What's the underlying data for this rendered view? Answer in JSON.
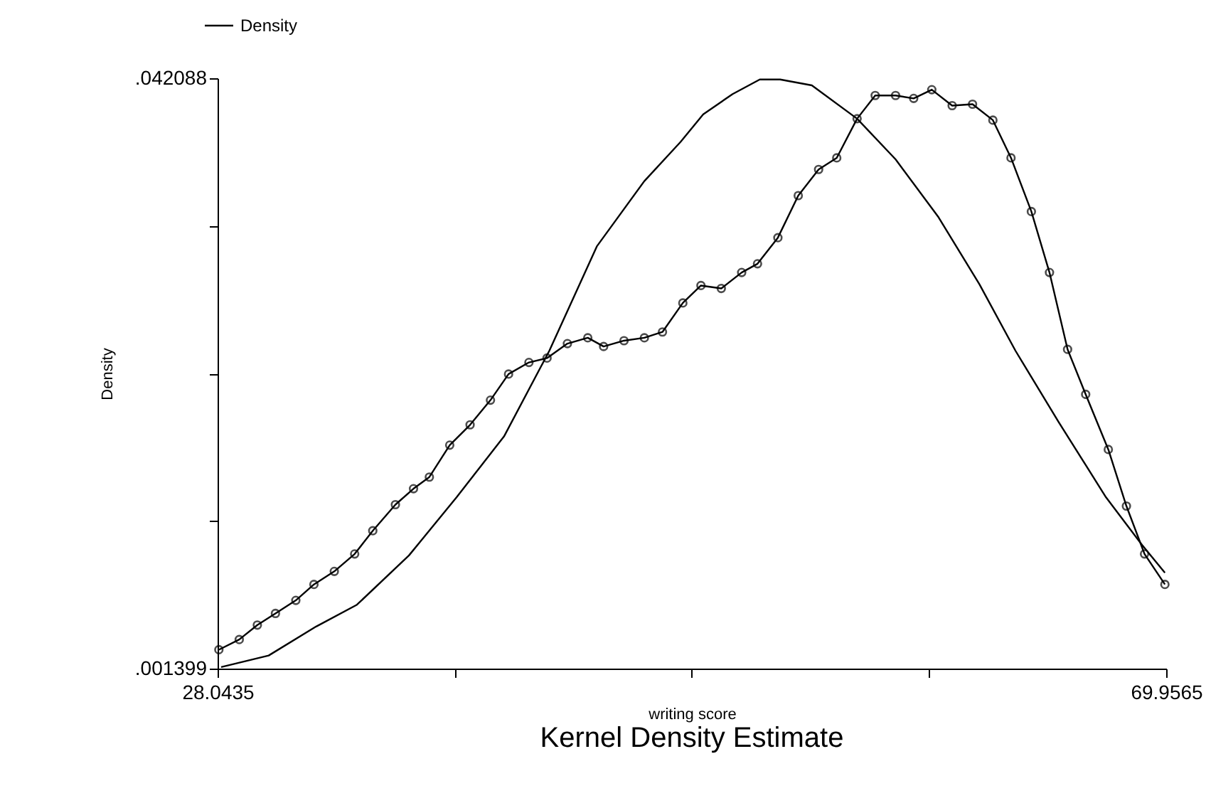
{
  "chart_data": {
    "type": "line",
    "title": "Kernel Density Estimate",
    "xlabel": "writing score",
    "ylabel": "Density",
    "xlim": [
      28.0435,
      69.9565
    ],
    "ylim": [
      0.001399,
      0.042088
    ],
    "xticks": [
      28.0435,
      {
        "value": 38.5218,
        "label": null
      },
      {
        "value": 49.0,
        "label": null
      },
      {
        "value": 59.4783,
        "label": null
      },
      69.9565
    ],
    "yticks": [
      {
        "value": 0.001399,
        "label": ".001399"
      },
      {
        "value": 0.0115713,
        "label": null
      },
      {
        "value": 0.0217435,
        "label": null
      },
      {
        "value": 0.0319158,
        "label": null
      },
      {
        "value": 0.042088,
        "label": ".042088"
      }
    ],
    "grid": false,
    "legend": "top left",
    "line_style": "solid",
    "series": [
      {
        "name": "Density",
        "color": "#000000",
        "marker": "circle",
        "x": [
          28.1,
          29.0,
          29.8,
          30.6,
          31.5,
          32.3,
          33.2,
          34.1,
          34.9,
          35.9,
          36.7,
          37.4,
          38.3,
          39.2,
          40.1,
          40.9,
          41.8,
          42.6,
          43.5,
          44.4,
          45.1,
          46.0,
          46.9,
          47.7,
          48.6,
          49.4,
          50.3,
          51.2,
          51.9,
          52.8,
          53.7,
          54.6,
          55.4,
          56.3,
          57.1,
          58.0,
          58.8,
          59.6,
          60.5,
          61.4,
          62.3,
          63.1,
          64.0,
          64.8,
          65.6,
          66.4,
          67.4,
          68.2,
          69.0,
          69.9
        ],
        "values": [
          0.0027,
          0.0034,
          0.0044,
          0.0052,
          0.0061,
          0.0072,
          0.0081,
          0.0093,
          0.0109,
          0.0127,
          0.0138,
          0.0146,
          0.0168,
          0.0182,
          0.0199,
          0.0217,
          0.0225,
          0.0228,
          0.0238,
          0.0242,
          0.0236,
          0.024,
          0.0242,
          0.0246,
          0.0266,
          0.0278,
          0.0276,
          0.0287,
          0.0293,
          0.0311,
          0.034,
          0.0358,
          0.0366,
          0.0393,
          0.0409,
          0.0409,
          0.0407,
          0.0413,
          0.0402,
          0.0403,
          0.0392,
          0.0366,
          0.0329,
          0.0287,
          0.0234,
          0.0203,
          0.0165,
          0.0126,
          0.0093,
          0.0072
        ]
      },
      {
        "color": "#000000",
        "marker": "none",
        "x": [
          28.2,
          30.3,
          32.4,
          34.2,
          36.5,
          38.6,
          40.7,
          42.7,
          44.8,
          46.9,
          48.5,
          49.5,
          50.8,
          52.0,
          52.9,
          54.3,
          56.3,
          58.0,
          59.9,
          61.7,
          63.3,
          65.2,
          67.3,
          68.9,
          69.9
        ],
        "values": [
          0.0015,
          0.0023,
          0.0043,
          0.0058,
          0.0092,
          0.0132,
          0.0174,
          0.0233,
          0.0305,
          0.035,
          0.0377,
          0.0396,
          0.041,
          0.042,
          0.042,
          0.0416,
          0.0393,
          0.0365,
          0.0325,
          0.0279,
          0.0233,
          0.0184,
          0.0132,
          0.0099,
          0.008
        ]
      }
    ]
  }
}
